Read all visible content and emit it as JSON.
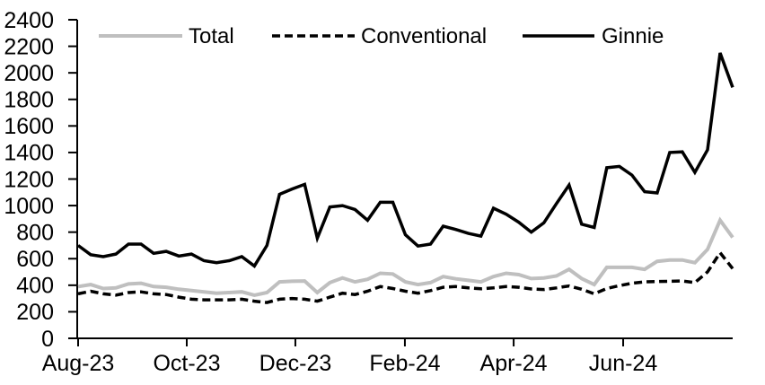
{
  "chart_data": {
    "type": "line",
    "title": "",
    "xlabel": "",
    "ylabel": "",
    "ylim": [
      0,
      2400
    ],
    "ytick_step": 200,
    "y_tick_labels": [
      "0",
      "200",
      "400",
      "600",
      "800",
      "1000",
      "1200",
      "1400",
      "1600",
      "1800",
      "2000",
      "2200",
      "2400"
    ],
    "x_tick_labels": [
      "Aug-23",
      "Oct-23",
      "Dec-23",
      "Feb-24",
      "Apr-24",
      "Jun-24"
    ],
    "x_tick_weeks": [
      0,
      8.63,
      17.26,
      25.96,
      34.6,
      43.3
    ],
    "n_points": 53,
    "frequency": "weekly",
    "x_range_description": "Weekly observations from Aug-23 through late Aug-24",
    "grid": false,
    "legend_position": "top",
    "background_color": "#ffffff",
    "axis_color": "#000000",
    "series": [
      {
        "name": "Total",
        "color": "#bfbfbf",
        "style": "solid",
        "values": [
          390,
          405,
          375,
          380,
          410,
          415,
          390,
          385,
          370,
          360,
          350,
          340,
          345,
          350,
          325,
          345,
          425,
          430,
          432,
          345,
          420,
          455,
          425,
          445,
          490,
          485,
          425,
          405,
          420,
          465,
          448,
          437,
          425,
          465,
          490,
          480,
          450,
          455,
          470,
          520,
          450,
          405,
          535,
          535,
          535,
          520,
          580,
          590,
          590,
          570,
          670,
          890,
          760
        ]
      },
      {
        "name": "Conventional",
        "color": "#000000",
        "style": "dashed",
        "values": [
          335,
          355,
          335,
          325,
          345,
          350,
          335,
          330,
          310,
          295,
          290,
          290,
          290,
          295,
          280,
          270,
          295,
          300,
          295,
          280,
          310,
          340,
          330,
          355,
          390,
          375,
          355,
          340,
          360,
          385,
          390,
          380,
          373,
          380,
          390,
          385,
          372,
          368,
          380,
          395,
          370,
          335,
          375,
          397,
          415,
          425,
          428,
          430,
          432,
          420,
          500,
          645,
          525
        ]
      },
      {
        "name": "Ginnie",
        "color": "#000000",
        "style": "solid",
        "values": [
          700,
          630,
          615,
          635,
          710,
          710,
          640,
          655,
          620,
          635,
          585,
          570,
          585,
          615,
          545,
          700,
          1085,
          1125,
          1160,
          755,
          990,
          1000,
          970,
          890,
          1025,
          1025,
          780,
          695,
          710,
          845,
          820,
          790,
          770,
          980,
          935,
          875,
          800,
          870,
          1015,
          1155,
          860,
          835,
          1285,
          1295,
          1230,
          1105,
          1095,
          1400,
          1405,
          1250,
          1420,
          2150,
          1890
        ]
      }
    ]
  }
}
